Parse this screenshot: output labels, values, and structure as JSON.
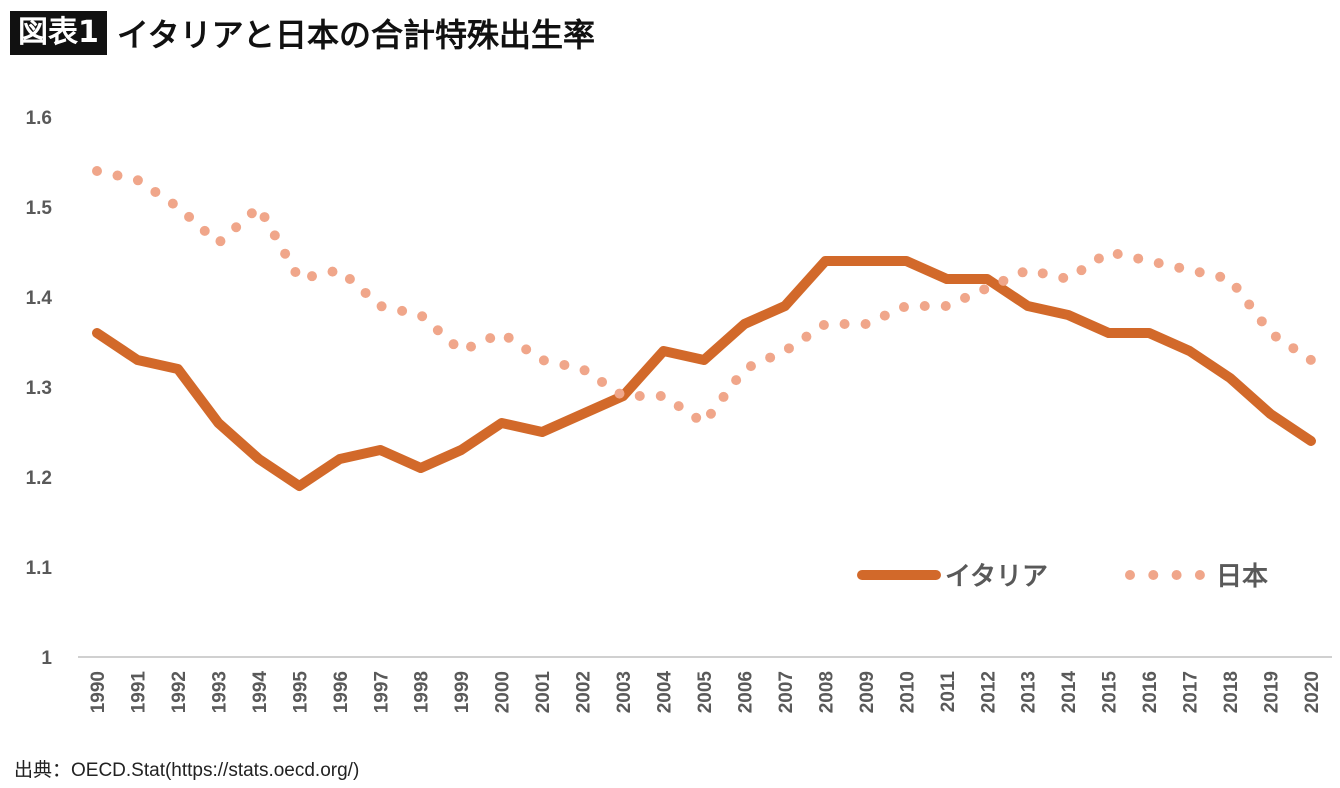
{
  "header": {
    "badge": "図表1",
    "title": "イタリアと日本の合計特殊出生率"
  },
  "source": "出典：OECD.Stat(https://stats.oecd.org/)",
  "chart_data": {
    "type": "line",
    "title": "イタリアと日本の合計特殊出生率",
    "xlabel": "",
    "ylabel": "",
    "x": [
      1990,
      1991,
      1992,
      1993,
      1994,
      1995,
      1996,
      1997,
      1998,
      1999,
      2000,
      2001,
      2002,
      2003,
      2004,
      2005,
      2006,
      2007,
      2008,
      2009,
      2010,
      2011,
      2012,
      2013,
      2014,
      2015,
      2016,
      2017,
      2018,
      2019,
      2020
    ],
    "ylim": [
      1,
      1.6
    ],
    "yticks": [
      "1",
      "1.1",
      "1.2",
      "1.3",
      "1.4",
      "1.5",
      "1.6"
    ],
    "grid": false,
    "legend_position": "bottom-right",
    "series": [
      {
        "name": "イタリア",
        "style": "solid",
        "color": "#d2692a",
        "values": [
          1.36,
          1.33,
          1.32,
          1.26,
          1.22,
          1.19,
          1.22,
          1.23,
          1.21,
          1.23,
          1.26,
          1.25,
          1.27,
          1.29,
          1.34,
          1.33,
          1.37,
          1.39,
          1.44,
          1.44,
          1.44,
          1.42,
          1.42,
          1.39,
          1.38,
          1.36,
          1.36,
          1.34,
          1.31,
          1.27,
          1.24
        ]
      },
      {
        "name": "日本",
        "style": "dotted",
        "color": "#f0a68a",
        "values": [
          1.54,
          1.53,
          1.5,
          1.46,
          1.5,
          1.42,
          1.43,
          1.39,
          1.38,
          1.34,
          1.36,
          1.33,
          1.32,
          1.29,
          1.29,
          1.26,
          1.32,
          1.34,
          1.37,
          1.37,
          1.39,
          1.39,
          1.41,
          1.43,
          1.42,
          1.45,
          1.44,
          1.43,
          1.42,
          1.36,
          1.33
        ]
      }
    ]
  }
}
